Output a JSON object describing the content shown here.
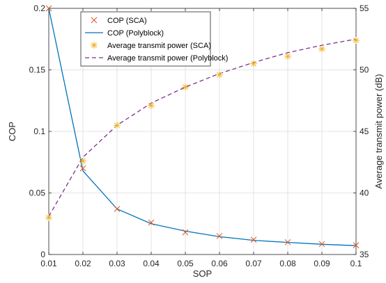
{
  "chart_data": {
    "type": "line",
    "xlabel": "SOP",
    "ylabel_left": "COP",
    "ylabel_right": "Average transmit power (dB)",
    "x": [
      0.01,
      0.02,
      0.03,
      0.04,
      0.05,
      0.06,
      0.07,
      0.08,
      0.09,
      0.1
    ],
    "xlim": [
      0.01,
      0.1
    ],
    "ylim_left": [
      0,
      0.2
    ],
    "ylim_right": [
      35,
      55
    ],
    "x_ticks": [
      "0.01",
      "0.02",
      "0.03",
      "0.04",
      "0.05",
      "0.06",
      "0.07",
      "0.08",
      "0.09",
      "0.1"
    ],
    "y_left_ticks": [
      "0",
      "0.05",
      "0.1",
      "0.15",
      "0.2"
    ],
    "y_right_ticks": [
      "35",
      "40",
      "45",
      "50",
      "55"
    ],
    "grid": true,
    "legend_position": "top-left",
    "series": [
      {
        "name": "COP (SCA)",
        "axis": "left",
        "style": "marker-x",
        "color": "#d95319",
        "values": [
          0.2,
          0.07,
          0.037,
          0.026,
          0.018,
          0.015,
          0.012,
          0.01,
          0.0085,
          0.0075
        ]
      },
      {
        "name": "COP (Polyblock)",
        "axis": "left",
        "style": "solid",
        "color": "#0072bd",
        "values": [
          0.2,
          0.068,
          0.037,
          0.025,
          0.019,
          0.0145,
          0.0115,
          0.0098,
          0.0083,
          0.0072
        ]
      },
      {
        "name": "Average transmit power (SCA)",
        "axis": "right",
        "style": "marker-star",
        "color": "#edb120",
        "values": [
          38.0,
          42.6,
          45.5,
          47.1,
          48.6,
          49.6,
          50.5,
          51.1,
          51.7,
          52.4
        ]
      },
      {
        "name": "Average transmit power (Polyblock)",
        "axis": "right",
        "style": "dashed",
        "color": "#7e2f8e",
        "values": [
          38.1,
          42.9,
          45.5,
          47.3,
          48.6,
          49.7,
          50.6,
          51.4,
          52.0,
          52.5
        ]
      }
    ]
  }
}
